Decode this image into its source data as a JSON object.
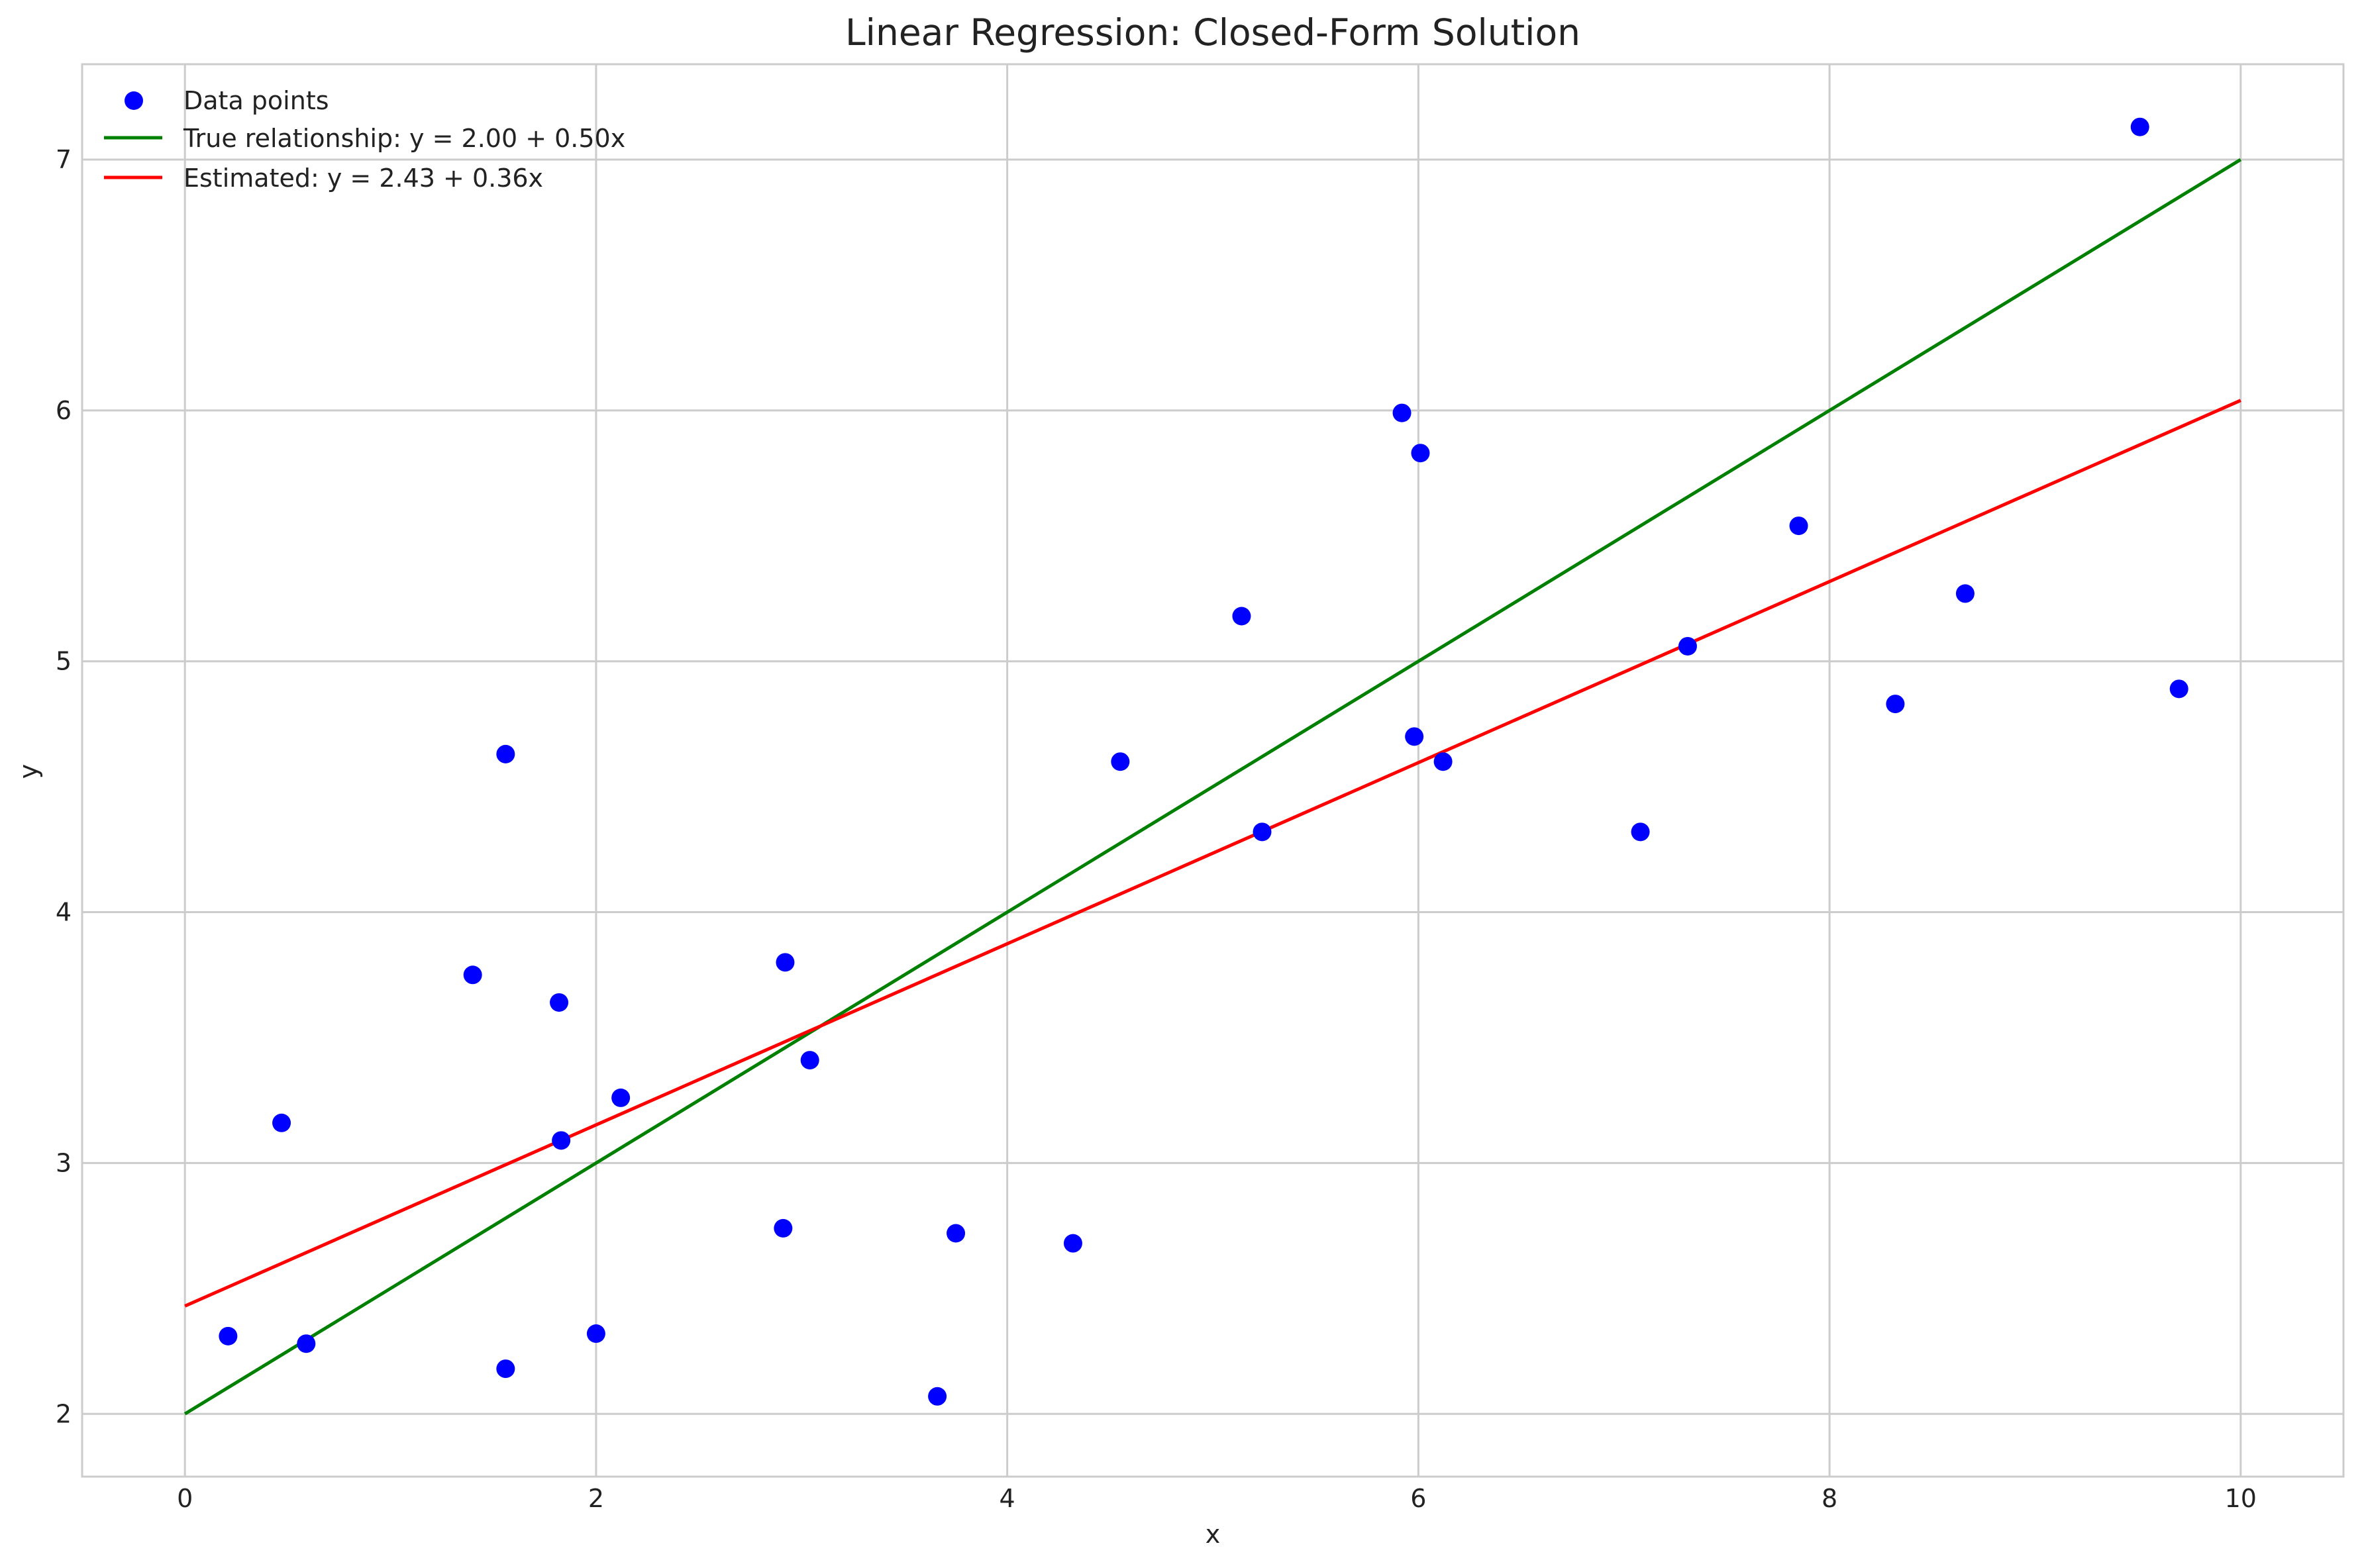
{
  "chart_data": {
    "type": "scatter",
    "title": "Linear Regression: Closed-Form Solution",
    "xlabel": "x",
    "ylabel": "y",
    "xlim": [
      -0.5,
      10.5
    ],
    "ylim": [
      1.75,
      7.38
    ],
    "xticks": [
      0,
      2,
      4,
      6,
      8,
      10
    ],
    "yticks": [
      2,
      3,
      4,
      5,
      6,
      7
    ],
    "grid": true,
    "legend_position": "upper left",
    "points": {
      "name": "Data points",
      "color": "#0000ff",
      "x": [
        0.21,
        0.47,
        0.59,
        1.4,
        1.56,
        1.56,
        1.82,
        1.83,
        2.0,
        2.12,
        2.91,
        2.92,
        3.04,
        3.66,
        3.75,
        4.32,
        4.55,
        5.14,
        5.24,
        5.92,
        5.98,
        6.01,
        6.12,
        7.08,
        7.31,
        7.85,
        8.32,
        8.66,
        9.51,
        9.7
      ],
      "y": [
        2.31,
        3.16,
        2.28,
        3.75,
        4.63,
        2.18,
        3.64,
        3.09,
        2.32,
        3.26,
        2.74,
        3.8,
        3.41,
        2.07,
        2.72,
        2.68,
        4.6,
        5.18,
        4.32,
        5.99,
        4.7,
        5.83,
        4.6,
        4.32,
        5.06,
        5.54,
        4.83,
        5.27,
        7.13,
        4.89
      ]
    },
    "series": [
      {
        "name": "True relationship: y = 2.00 + 0.50x",
        "color": "#008000",
        "x": [
          0,
          10
        ],
        "y": [
          2.0,
          7.0
        ]
      },
      {
        "name": "Estimated: y = 2.43 + 0.36x",
        "color": "#ff0000",
        "x": [
          0,
          10
        ],
        "y": [
          2.43,
          6.04
        ]
      }
    ]
  }
}
